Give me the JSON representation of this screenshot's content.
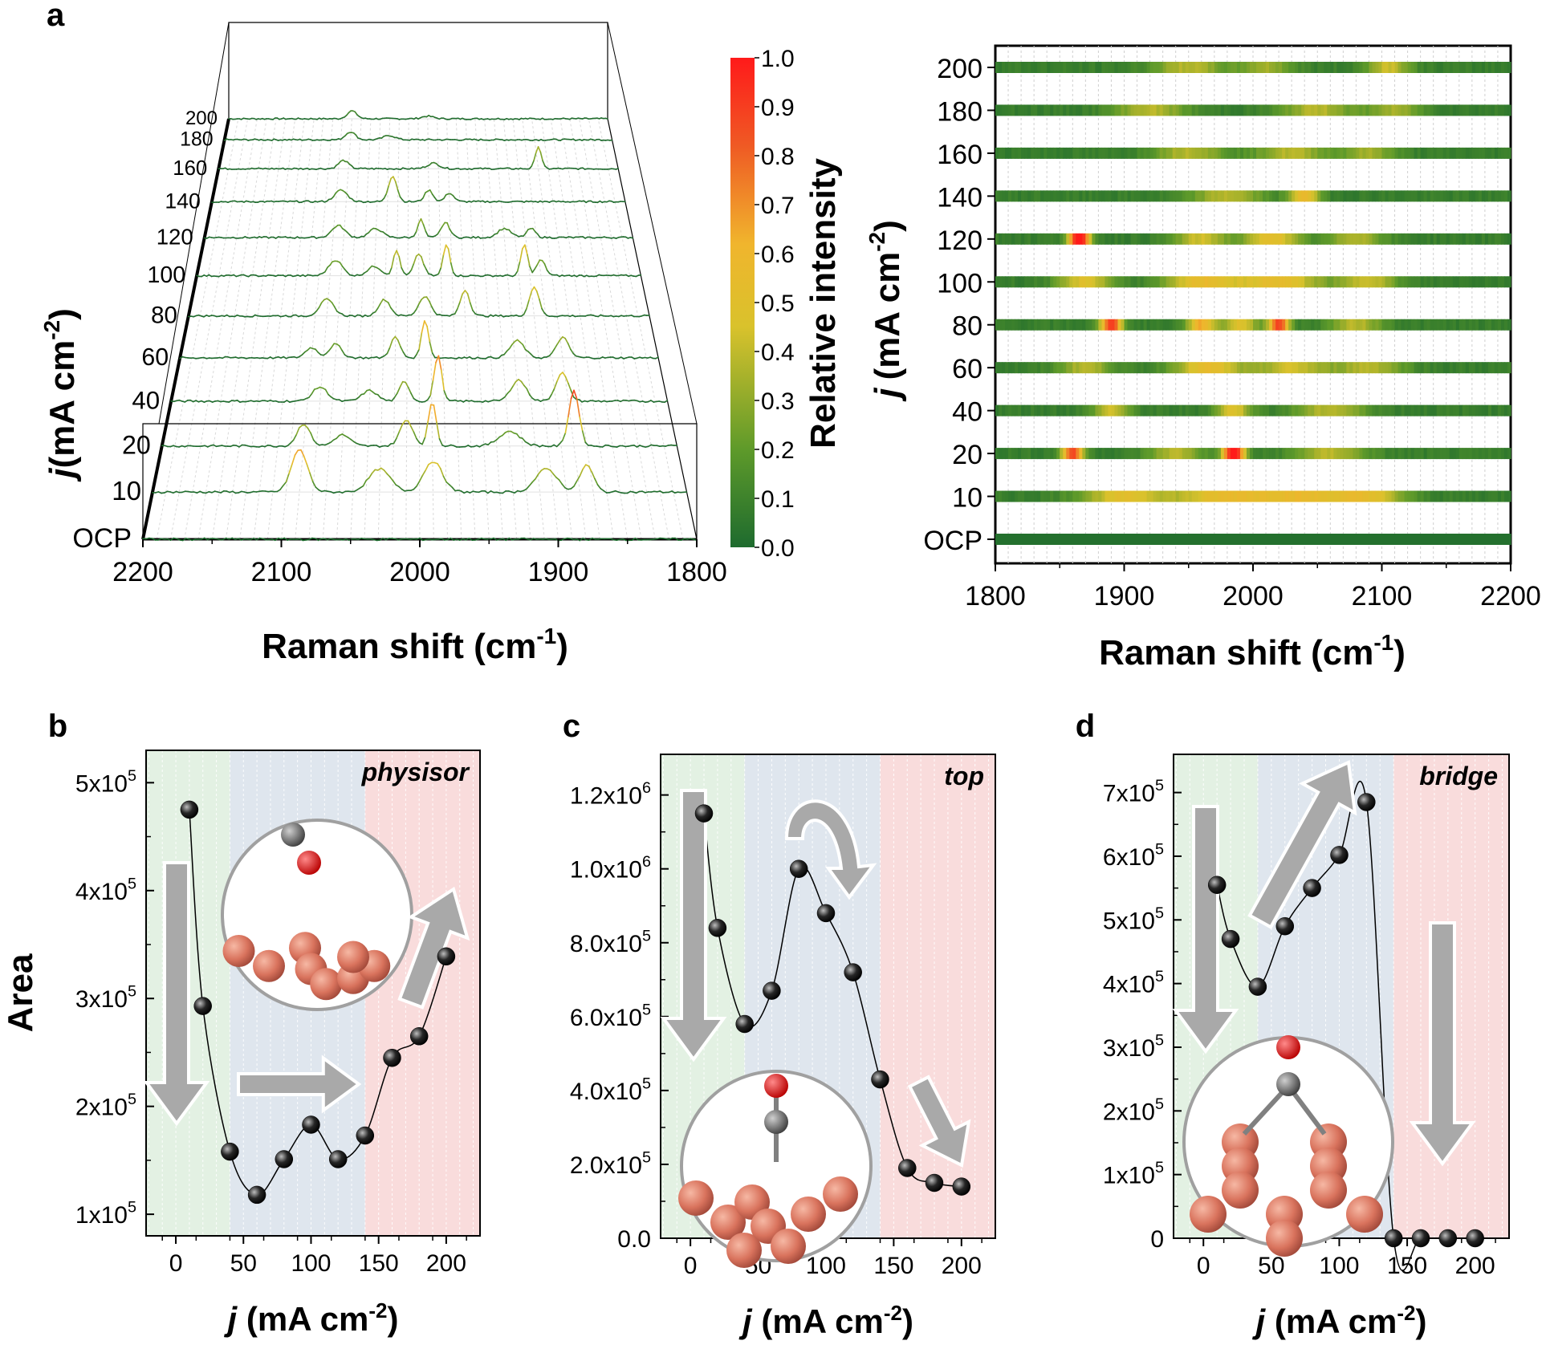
{
  "panels": {
    "a": {
      "label": "a",
      "waterfall": {
        "type": "line",
        "xlabel": "Raman shift (cm",
        "xlabel_sup": "-1",
        "xlabel_close": ")",
        "ylabel": "j",
        "ylabel_unit": "(mA cm",
        "ylabel_sup": "-2",
        "ylabel_close": ")",
        "xlim": [
          2200,
          1800
        ],
        "xticks": [
          "2200",
          "2100",
          "2000",
          "1900",
          "1800"
        ],
        "levels": [
          "OCP",
          "10",
          "20",
          "40",
          "60",
          "80",
          "100",
          "120",
          "140",
          "160",
          "180",
          "200"
        ]
      },
      "colorbar": {
        "title": "Relative intensity",
        "ticks": [
          "0.0",
          "0.1",
          "0.2",
          "0.3",
          "0.4",
          "0.5",
          "0.6",
          "0.7",
          "0.8",
          "0.9",
          "1.0"
        ],
        "colors": [
          "#1e6b2e",
          "#7aa329",
          "#e8c62a",
          "#ef4423",
          "#ff0000"
        ]
      },
      "heatmap": {
        "type": "heatmap",
        "xlabel": "Raman shift (cm",
        "xlabel_sup": "-1",
        "xlabel_close": ")",
        "ylabel": "j",
        "ylabel_unit": "(mA cm",
        "ylabel_sup": "-2",
        "ylabel_close": ")",
        "xlim": [
          1800,
          2200
        ],
        "xticks": [
          "1800",
          "1900",
          "2000",
          "2100",
          "2200"
        ],
        "rows": [
          "OCP",
          "10",
          "20",
          "40",
          "60",
          "80",
          "100",
          "120",
          "140",
          "160",
          "180",
          "200"
        ]
      }
    }
  },
  "chart_data": [
    {
      "id": "b",
      "type": "scatter",
      "label": "b",
      "tag": "physisor",
      "xlabel": "j",
      "xlabel_unit": "(mA cm",
      "xlabel_sup": "-2",
      "xlabel_close": ")",
      "ylabel": "Area",
      "xlim": [
        -22,
        225
      ],
      "ylim": [
        80000,
        530000
      ],
      "xticks": [
        0,
        50,
        100,
        150,
        200
      ],
      "yticks": [
        {
          "v": 100000,
          "m": "1x10",
          "e": "5"
        },
        {
          "v": 200000,
          "m": "2x10",
          "e": "5"
        },
        {
          "v": 300000,
          "m": "3x10",
          "e": "5"
        },
        {
          "v": 400000,
          "m": "4x10",
          "e": "5"
        },
        {
          "v": 500000,
          "m": "5x10",
          "e": "5"
        }
      ],
      "regions": [
        {
          "from": -22,
          "to": 40,
          "color": "#e3f1e3"
        },
        {
          "from": 40,
          "to": 140,
          "color": "#dfe6ee"
        },
        {
          "from": 140,
          "to": 225,
          "color": "#f9dcdc"
        }
      ],
      "x": [
        10,
        20,
        40,
        60,
        80,
        100,
        120,
        140,
        160,
        180,
        200
      ],
      "y": [
        475000,
        293000,
        158000,
        118000,
        151000,
        183000,
        151000,
        173000,
        245000,
        265000,
        339000
      ]
    },
    {
      "id": "c",
      "type": "scatter",
      "label": "c",
      "tag": "top",
      "xlabel": "j",
      "xlabel_unit": "(mA cm",
      "xlabel_sup": "-2",
      "xlabel_close": ")",
      "ylabel": "",
      "xlim": [
        -22,
        225
      ],
      "ylim": [
        0,
        1310000
      ],
      "xticks": [
        0,
        50,
        100,
        150,
        200
      ],
      "yticks": [
        {
          "v": 0,
          "m": "0.0",
          "e": ""
        },
        {
          "v": 200000,
          "m": "2.0x10",
          "e": "5"
        },
        {
          "v": 400000,
          "m": "4.0x10",
          "e": "5"
        },
        {
          "v": 600000,
          "m": "6.0x10",
          "e": "5"
        },
        {
          "v": 800000,
          "m": "8.0x10",
          "e": "5"
        },
        {
          "v": 1000000,
          "m": "1.0x10",
          "e": "6"
        },
        {
          "v": 1200000,
          "m": "1.2x10",
          "e": "6"
        }
      ],
      "regions": [
        {
          "from": -22,
          "to": 40,
          "color": "#e3f1e3"
        },
        {
          "from": 40,
          "to": 140,
          "color": "#dfe6ee"
        },
        {
          "from": 140,
          "to": 225,
          "color": "#f9dcdc"
        }
      ],
      "x": [
        10,
        20,
        40,
        60,
        80,
        100,
        120,
        140,
        160,
        180,
        200
      ],
      "y": [
        1150000,
        840000,
        580000,
        670000,
        1000000,
        880000,
        720000,
        430000,
        190000,
        150000,
        140000
      ]
    },
    {
      "id": "d",
      "type": "scatter",
      "label": "d",
      "tag": "bridge",
      "xlabel": "j",
      "xlabel_unit": "(mA cm",
      "xlabel_sup": "-2",
      "xlabel_close": ")",
      "ylabel": "",
      "xlim": [
        -22,
        225
      ],
      "ylim": [
        0,
        760000
      ],
      "xticks": [
        0,
        50,
        100,
        150,
        200
      ],
      "yticks": [
        {
          "v": 0,
          "m": "0",
          "e": ""
        },
        {
          "v": 100000,
          "m": "1x10",
          "e": "5"
        },
        {
          "v": 200000,
          "m": "2x10",
          "e": "5"
        },
        {
          "v": 300000,
          "m": "3x10",
          "e": "5"
        },
        {
          "v": 400000,
          "m": "4x10",
          "e": "5"
        },
        {
          "v": 500000,
          "m": "5x10",
          "e": "5"
        },
        {
          "v": 600000,
          "m": "6x10",
          "e": "5"
        },
        {
          "v": 700000,
          "m": "7x10",
          "e": "5"
        }
      ],
      "regions": [
        {
          "from": -22,
          "to": 40,
          "color": "#e3f1e3"
        },
        {
          "from": 40,
          "to": 140,
          "color": "#dfe6ee"
        },
        {
          "from": 140,
          "to": 225,
          "color": "#f9dcdc"
        }
      ],
      "x": [
        10,
        20,
        40,
        60,
        80,
        100,
        120,
        140,
        160,
        180,
        200
      ],
      "y": [
        555000,
        470000,
        395000,
        490000,
        550000,
        602000,
        685000,
        0,
        0,
        0,
        0
      ]
    }
  ]
}
